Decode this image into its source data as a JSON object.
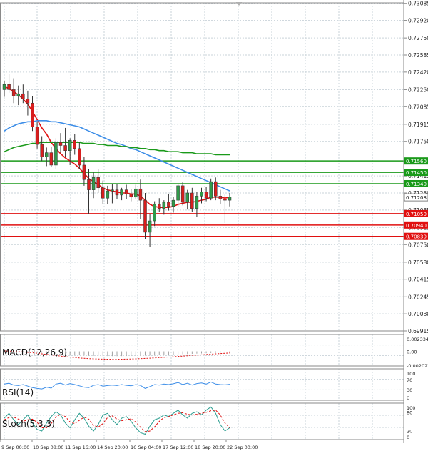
{
  "chart_data": {
    "type": "candlestick",
    "symbol_note": "",
    "price_axis": {
      "ylim": [
        0.69915,
        0.7309
      ],
      "ticks": [
        "0.73085",
        "0.72920",
        "0.72750",
        "0.72585",
        "0.72420",
        "0.72250",
        "0.72085",
        "0.71915",
        "0.71750",
        "0.71415",
        "0.71250",
        "0.71085",
        "0.70915",
        "0.70750",
        "0.70580",
        "0.70415",
        "0.70245",
        "0.70080",
        "0.69915"
      ]
    },
    "x_axis": {
      "ticks": [
        "9 Sep 00:00",
        "10 Sep 08:00",
        "11 Sep 16:00",
        "14 Sep 20:00",
        "16 Sep 04:00",
        "17 Sep 12:00",
        "18 Sep 20:00",
        "22 Sep 00:00"
      ]
    },
    "levels": [
      {
        "value": "0.71560",
        "kind": "resistance",
        "color": "#1a9a1a"
      },
      {
        "value": "0.71450",
        "kind": "resistance",
        "color": "#1a9a1a"
      },
      {
        "value": "0.71340",
        "kind": "resistance",
        "color": "#1a9a1a"
      },
      {
        "value": "0.71050",
        "kind": "support",
        "color": "#e01010"
      },
      {
        "value": "0.70940",
        "kind": "support",
        "color": "#e01010"
      },
      {
        "value": "0.70830",
        "kind": "support",
        "color": "#e01010"
      }
    ],
    "current_price": "0.71208",
    "candles": [
      [
        0.7225,
        0.7233,
        0.7218,
        0.723
      ],
      [
        0.723,
        0.724,
        0.7222,
        0.7225
      ],
      [
        0.7225,
        0.7236,
        0.7212,
        0.7219
      ],
      [
        0.7219,
        0.7229,
        0.721,
        0.7221
      ],
      [
        0.7221,
        0.723,
        0.7212,
        0.7216
      ],
      [
        0.7216,
        0.7224,
        0.72,
        0.7212
      ],
      [
        0.7212,
        0.7219,
        0.7185,
        0.7189
      ],
      [
        0.7189,
        0.7194,
        0.7168,
        0.7172
      ],
      [
        0.7172,
        0.718,
        0.7156,
        0.716
      ],
      [
        0.716,
        0.7169,
        0.7151,
        0.7164
      ],
      [
        0.7164,
        0.717,
        0.715,
        0.7152
      ],
      [
        0.7152,
        0.7178,
        0.7148,
        0.7174
      ],
      [
        0.7174,
        0.7183,
        0.7164,
        0.7171
      ],
      [
        0.7171,
        0.7188,
        0.716,
        0.7166
      ],
      [
        0.7166,
        0.7178,
        0.7152,
        0.7176
      ],
      [
        0.7176,
        0.7182,
        0.7162,
        0.7168
      ],
      [
        0.7168,
        0.7174,
        0.7148,
        0.7152
      ],
      [
        0.7152,
        0.716,
        0.7132,
        0.7138
      ],
      [
        0.7138,
        0.7148,
        0.7105,
        0.7128
      ],
      [
        0.7128,
        0.7145,
        0.712,
        0.714
      ],
      [
        0.714,
        0.7148,
        0.7125,
        0.713
      ],
      [
        0.713,
        0.7137,
        0.7114,
        0.712
      ],
      [
        0.712,
        0.7132,
        0.7114,
        0.7127
      ],
      [
        0.7127,
        0.7134,
        0.7115,
        0.7128
      ],
      [
        0.7128,
        0.7134,
        0.7119,
        0.7123
      ],
      [
        0.7123,
        0.713,
        0.7118,
        0.7128
      ],
      [
        0.7128,
        0.7133,
        0.7119,
        0.7124
      ],
      [
        0.7124,
        0.7129,
        0.7117,
        0.7121
      ],
      [
        0.7121,
        0.7133,
        0.7119,
        0.7129
      ],
      [
        0.7129,
        0.7138,
        0.71,
        0.7118
      ],
      [
        0.7118,
        0.7125,
        0.708,
        0.7087
      ],
      [
        0.7087,
        0.7105,
        0.7073,
        0.7098
      ],
      [
        0.7098,
        0.7117,
        0.7093,
        0.7114
      ],
      [
        0.7114,
        0.712,
        0.7107,
        0.711
      ],
      [
        0.711,
        0.7118,
        0.7104,
        0.7116
      ],
      [
        0.7116,
        0.7124,
        0.7108,
        0.7112
      ],
      [
        0.7112,
        0.7121,
        0.7106,
        0.7118
      ],
      [
        0.7118,
        0.7134,
        0.7112,
        0.7132
      ],
      [
        0.7132,
        0.7136,
        0.7113,
        0.7116
      ],
      [
        0.7116,
        0.7128,
        0.7109,
        0.7125
      ],
      [
        0.7125,
        0.713,
        0.7107,
        0.711
      ],
      [
        0.711,
        0.7126,
        0.7102,
        0.7122
      ],
      [
        0.7122,
        0.713,
        0.7115,
        0.7126
      ],
      [
        0.7126,
        0.7131,
        0.7117,
        0.712
      ],
      [
        0.712,
        0.7139,
        0.7118,
        0.7136
      ],
      [
        0.7136,
        0.714,
        0.7118,
        0.7122
      ],
      [
        0.7122,
        0.7128,
        0.7114,
        0.7119
      ],
      [
        0.7119,
        0.7124,
        0.7096,
        0.7118
      ],
      [
        0.7118,
        0.7125,
        0.7112,
        0.7121
      ]
    ],
    "ma_series": [
      {
        "color": "#e01010",
        "values": [
          0.7228,
          0.7226,
          0.7223,
          0.722,
          0.7216,
          0.7211,
          0.7204,
          0.7196,
          0.7188,
          0.7182,
          0.7174,
          0.7168,
          0.7163,
          0.7159,
          0.7156,
          0.7153,
          0.7149,
          0.7144,
          0.7139,
          0.7136,
          0.7133,
          0.713,
          0.7128,
          0.7127,
          0.7126,
          0.7125,
          0.7125,
          0.7124,
          0.7124,
          0.7122,
          0.7118,
          0.7114,
          0.7112,
          0.7111,
          0.7111,
          0.7111,
          0.7112,
          0.7114,
          0.7115,
          0.7116,
          0.7116,
          0.7117,
          0.7118,
          0.7119,
          0.7121,
          0.7121,
          0.7121,
          0.712,
          0.7121
        ]
      },
      {
        "color": "#3d8ee8",
        "values": [
          0.7185,
          0.7188,
          0.719,
          0.7192,
          0.7193,
          0.7194,
          0.7194,
          0.7195,
          0.7195,
          0.7195,
          0.7194,
          0.7194,
          0.7193,
          0.7192,
          0.7191,
          0.719,
          0.7189,
          0.7187,
          0.7185,
          0.7183,
          0.7181,
          0.7179,
          0.7177,
          0.7175,
          0.7173,
          0.7172,
          0.717,
          0.7168,
          0.7167,
          0.7165,
          0.7163,
          0.7161,
          0.7159,
          0.7157,
          0.7155,
          0.7153,
          0.7151,
          0.7149,
          0.7147,
          0.7145,
          0.7143,
          0.7141,
          0.7139,
          0.7137,
          0.7135,
          0.7133,
          0.7131,
          0.7129,
          0.7127
        ]
      },
      {
        "color": "#1a9a1a",
        "values": [
          0.7165,
          0.7167,
          0.7169,
          0.717,
          0.7171,
          0.7172,
          0.7173,
          0.7173,
          0.7174,
          0.7174,
          0.7174,
          0.7174,
          0.7174,
          0.7174,
          0.7174,
          0.7174,
          0.7174,
          0.7173,
          0.7173,
          0.7173,
          0.7172,
          0.7172,
          0.7171,
          0.7171,
          0.7171,
          0.717,
          0.717,
          0.7169,
          0.7169,
          0.7168,
          0.7168,
          0.7167,
          0.7167,
          0.7166,
          0.7166,
          0.7165,
          0.7165,
          0.7165,
          0.7164,
          0.7164,
          0.7164,
          0.7163,
          0.7163,
          0.7163,
          0.7163,
          0.7162,
          0.7162,
          0.7162,
          0.7162
        ]
      }
    ],
    "indicators": [
      {
        "name": "MACD(12,26,9)",
        "ticks": [
          "0.002334",
          "0.00",
          "-0.002027"
        ],
        "ylim": [
          -0.002027,
          0.002334
        ],
        "signal": [
          5e-05,
          3e-05,
          0.0,
          -4e-05,
          -8e-05,
          -0.00013,
          -0.00019,
          -0.00026,
          -0.00034,
          -0.00042,
          -0.0005,
          -0.00058,
          -0.00066,
          -0.00073,
          -0.0008,
          -0.00086,
          -0.00092,
          -0.00097,
          -0.00101,
          -0.00104,
          -0.00106,
          -0.00108,
          -0.00109,
          -0.0011,
          -0.0011,
          -0.00109,
          -0.00108,
          -0.00106,
          -0.00104,
          -0.00101,
          -0.00098,
          -0.00095,
          -0.00091,
          -0.00087,
          -0.00083,
          -0.00079,
          -0.00075,
          -0.0007,
          -0.00066,
          -0.00061,
          -0.00057,
          -0.00052,
          -0.00048,
          -0.00043,
          -0.00039,
          -0.00034,
          -0.0003,
          -0.00026,
          -0.00022
        ]
      },
      {
        "name": "RSI(14)",
        "ticks": [
          "100",
          "70",
          "30",
          "0"
        ],
        "ylim": [
          0,
          100
        ],
        "values": [
          52,
          55,
          48,
          46,
          50,
          44,
          38,
          35,
          33,
          40,
          36,
          52,
          55,
          48,
          54,
          50,
          45,
          40,
          38,
          47,
          50,
          44,
          46,
          48,
          46,
          50,
          47,
          45,
          50,
          47,
          35,
          42,
          50,
          48,
          52,
          50,
          53,
          58,
          50,
          55,
          48,
          54,
          56,
          52,
          60,
          52,
          50,
          49,
          51
        ]
      },
      {
        "name": "Stoch(5,3,3)",
        "ticks": [
          "100",
          "80",
          "20",
          "0"
        ],
        "ylim": [
          0,
          100
        ],
        "k": [
          60,
          75,
          55,
          40,
          55,
          70,
          45,
          25,
          20,
          45,
          65,
          80,
          70,
          45,
          30,
          55,
          75,
          60,
          35,
          20,
          40,
          70,
          75,
          55,
          40,
          60,
          65,
          50,
          30,
          15,
          10,
          35,
          55,
          60,
          70,
          65,
          75,
          85,
          70,
          60,
          75,
          80,
          70,
          85,
          95,
          75,
          40,
          20,
          30
        ],
        "d": [
          55,
          62,
          63,
          57,
          50,
          55,
          57,
          47,
          30,
          30,
          43,
          63,
          72,
          65,
          48,
          43,
          53,
          63,
          57,
          38,
          32,
          43,
          62,
          67,
          57,
          52,
          55,
          58,
          48,
          32,
          18,
          20,
          33,
          50,
          62,
          65,
          70,
          75,
          77,
          72,
          70,
          72,
          75,
          78,
          83,
          85,
          70,
          45,
          30
        ]
      }
    ]
  }
}
